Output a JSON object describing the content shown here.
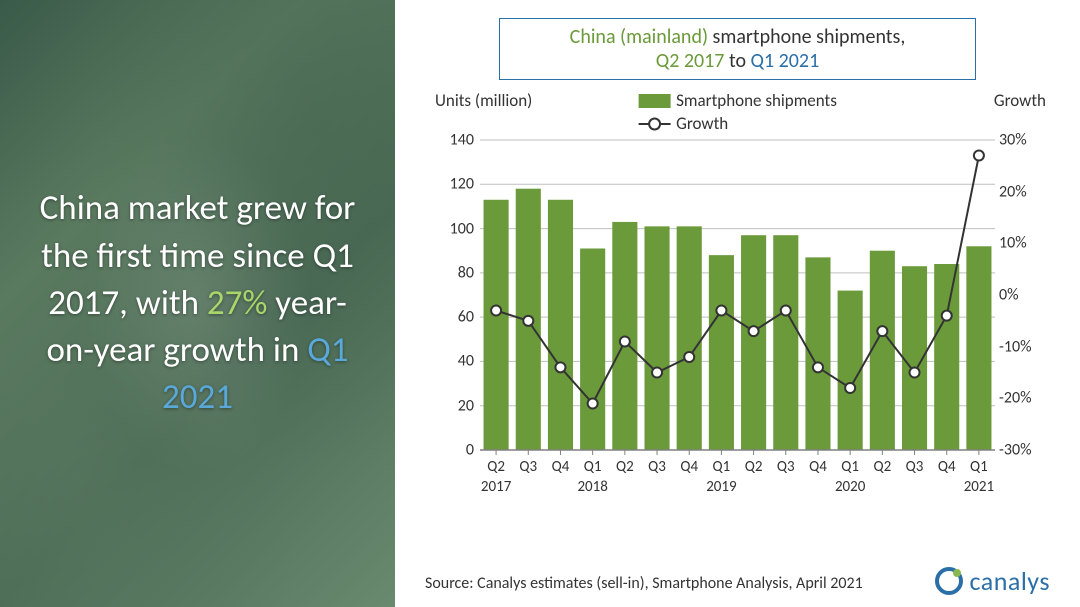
{
  "headline": {
    "part1": "China market grew for the first time since Q1 2017, with ",
    "accent1": "27%",
    "part2": " year-on-year growth in ",
    "accent2": "Q1 2021",
    "text_color": "#ffffff",
    "accent1_color": "#a8d66a",
    "accent2_color": "#5aa8d8",
    "fontsize": 35
  },
  "chart_title": {
    "t1": "China (mainland)",
    "t2": " smartphone shipments,",
    "t3": "Q2 2017",
    "t4_prefix": " to ",
    "t4": "Q1 2021",
    "border_color": "#2a6fa8",
    "t1_color": "#6a9a3a",
    "t2_color": "#333333",
    "t3_color": "#6a9a3a",
    "t4_color": "#2a6fa8",
    "fontsize": 20
  },
  "chart": {
    "type": "bar+line",
    "left_axis_label": "Units (million)",
    "right_axis_label": "Growth",
    "legend_bar": "Smartphone shipments",
    "legend_line": "Growth",
    "categories": [
      "Q2",
      "Q3",
      "Q4",
      "Q1",
      "Q2",
      "Q3",
      "Q4",
      "Q1",
      "Q2",
      "Q3",
      "Q4",
      "Q1",
      "Q2",
      "Q3",
      "Q4",
      "Q1"
    ],
    "year_labels": {
      "0": "2017",
      "3": "2018",
      "7": "2019",
      "11": "2020",
      "15": "2021"
    },
    "bar_values": [
      113,
      118,
      113,
      91,
      103,
      101,
      101,
      88,
      97,
      97,
      87,
      72,
      90,
      83,
      84,
      92
    ],
    "line_values": [
      -3,
      -5,
      -14,
      -21,
      -9,
      -15,
      -12,
      -3,
      -7,
      -3,
      -14,
      -18,
      -7,
      -15,
      -4,
      27
    ],
    "bar_color": "#6a9a3a",
    "line_color": "#333333",
    "marker_fill": "#ffffff",
    "marker_stroke": "#333333",
    "marker_radius": 5,
    "line_width": 2,
    "bar_width_ratio": 0.78,
    "left_ylim": [
      0,
      140
    ],
    "left_ytick_step": 20,
    "right_ylim": [
      -30,
      30
    ],
    "right_ytick_step": 10,
    "grid_color": "#bfbfbf",
    "axis_color": "#808080",
    "tick_fontsize": 16,
    "label_fontsize": 17,
    "background_color": "#ffffff"
  },
  "source": "Source: Canalys estimates (sell-in), Smartphone Analysis, April 2021",
  "logo": {
    "text": "canalys",
    "ring_color": "#2a6fa8",
    "dot_color": "#8ab850",
    "text_color": "#2a6fa8"
  }
}
